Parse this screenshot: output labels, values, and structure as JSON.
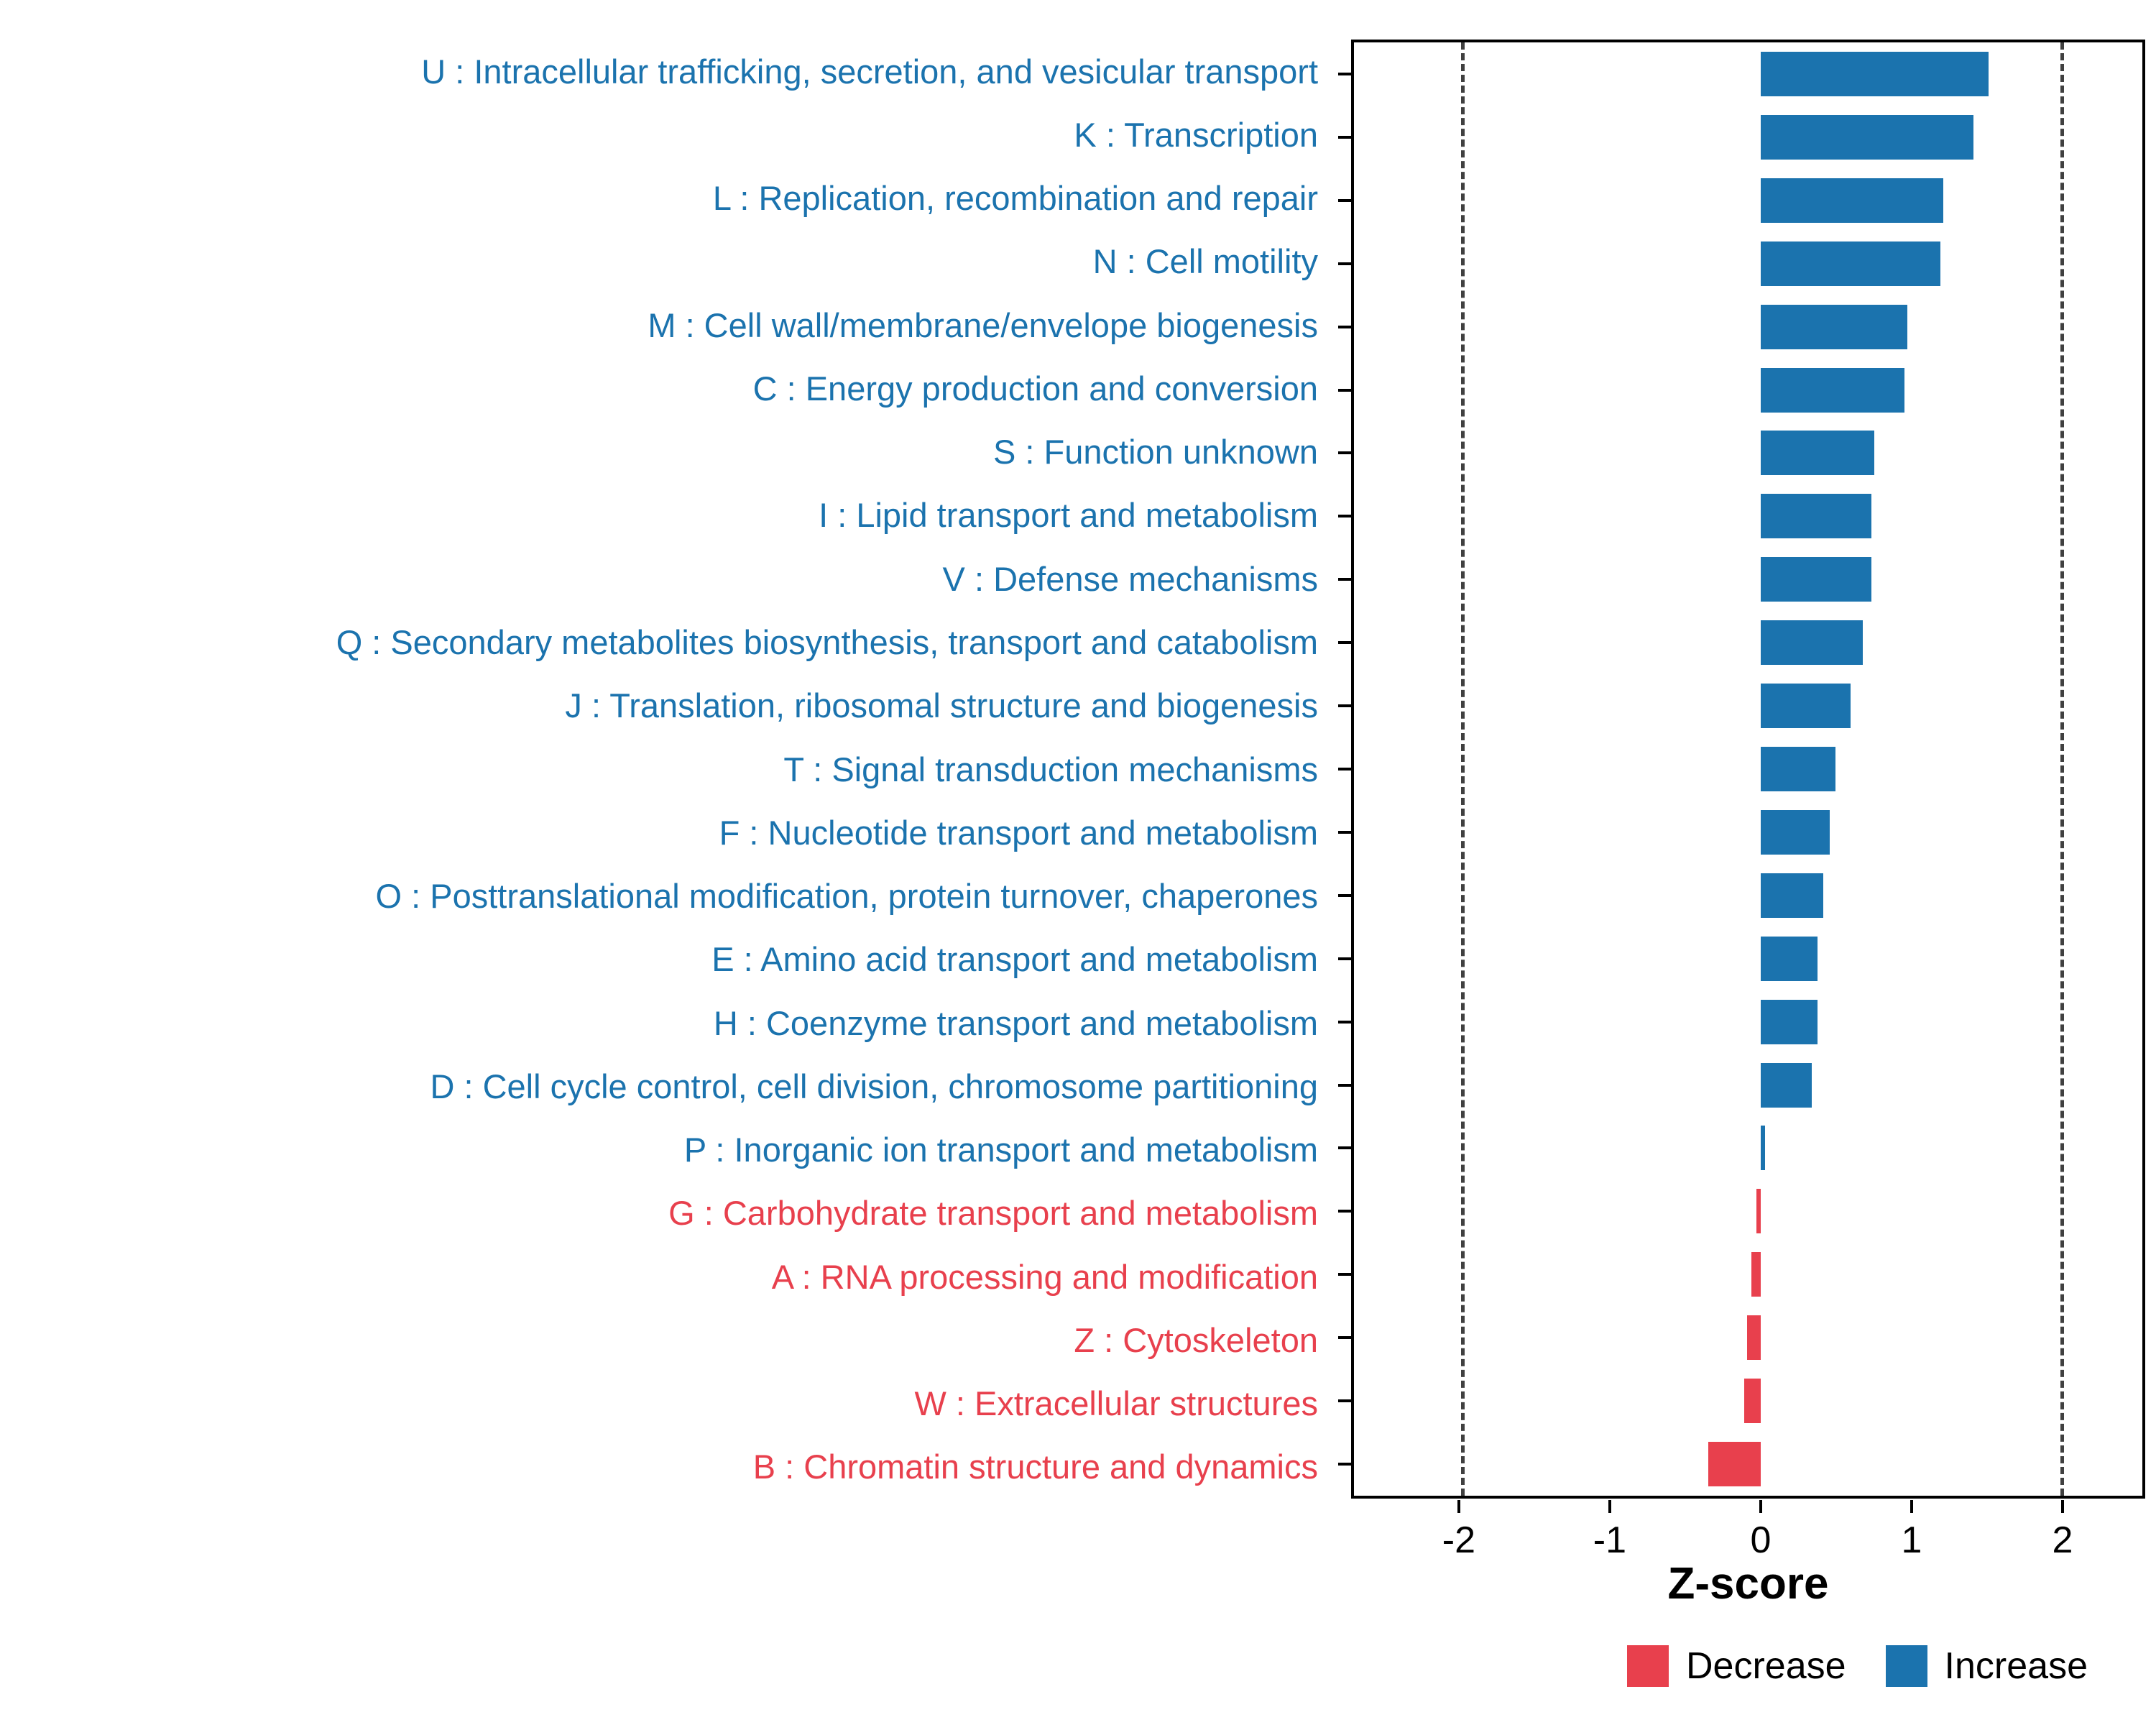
{
  "chart_data": {
    "type": "bar",
    "orientation": "horizontal",
    "title": "",
    "xlabel": "Z-score",
    "ylabel": "",
    "xlim": [
      -2.714,
      2.548
    ],
    "x_ticks": [
      -2,
      -1,
      0,
      1,
      2
    ],
    "x_tick_labels": [
      "-2",
      "-1",
      "0",
      "1",
      "2"
    ],
    "dashed_lines_x": [
      -2,
      2
    ],
    "grid": false,
    "legend_position": "bottom-right",
    "colors": {
      "increase": "#1b73ae",
      "decrease": "#e8404d",
      "dashed_line": "#404040",
      "axis": "#000000"
    },
    "categories": [
      {
        "label": "U : Intracellular trafficking, secretion, and vesicular transport",
        "value": 1.52,
        "direction": "Increase"
      },
      {
        "label": "K : Transcription",
        "value": 1.42,
        "direction": "Increase"
      },
      {
        "label": "L : Replication, recombination and repair",
        "value": 1.22,
        "direction": "Increase"
      },
      {
        "label": "N : Cell motility",
        "value": 1.2,
        "direction": "Increase"
      },
      {
        "label": "M : Cell wall/membrane/envelope biogenesis",
        "value": 0.98,
        "direction": "Increase"
      },
      {
        "label": "C : Energy production and conversion",
        "value": 0.96,
        "direction": "Increase"
      },
      {
        "label": "S : Function unknown",
        "value": 0.76,
        "direction": "Increase"
      },
      {
        "label": "I : Lipid transport and metabolism",
        "value": 0.74,
        "direction": "Increase"
      },
      {
        "label": "V : Defense mechanisms",
        "value": 0.74,
        "direction": "Increase"
      },
      {
        "label": "Q : Secondary metabolites biosynthesis, transport and catabolism",
        "value": 0.68,
        "direction": "Increase"
      },
      {
        "label": "J : Translation, ribosomal structure and biogenesis",
        "value": 0.6,
        "direction": "Increase"
      },
      {
        "label": "T : Signal transduction mechanisms",
        "value": 0.5,
        "direction": "Increase"
      },
      {
        "label": "F : Nucleotide transport and metabolism",
        "value": 0.46,
        "direction": "Increase"
      },
      {
        "label": "O : Posttranslational modification, protein turnover, chaperones",
        "value": 0.42,
        "direction": "Increase"
      },
      {
        "label": "E : Amino acid transport and metabolism",
        "value": 0.38,
        "direction": "Increase"
      },
      {
        "label": "H : Coenzyme transport and metabolism",
        "value": 0.38,
        "direction": "Increase"
      },
      {
        "label": "D : Cell cycle control, cell division, chromosome partitioning",
        "value": 0.34,
        "direction": "Increase"
      },
      {
        "label": "P : Inorganic ion transport and metabolism",
        "value": 0.03,
        "direction": "Increase"
      },
      {
        "label": "G : Carbohydrate transport and metabolism",
        "value": -0.03,
        "direction": "Decrease"
      },
      {
        "label": "A : RNA processing and modification",
        "value": -0.06,
        "direction": "Decrease"
      },
      {
        "label": "Z : Cytoskeleton",
        "value": -0.09,
        "direction": "Decrease"
      },
      {
        "label": "W : Extracellular structures",
        "value": -0.11,
        "direction": "Decrease"
      },
      {
        "label": "B : Chromatin structure and dynamics",
        "value": -0.35,
        "direction": "Decrease"
      }
    ],
    "legend": [
      {
        "label": "Decrease",
        "color": "#e8404d"
      },
      {
        "label": "Increase",
        "color": "#1b73ae"
      }
    ]
  }
}
